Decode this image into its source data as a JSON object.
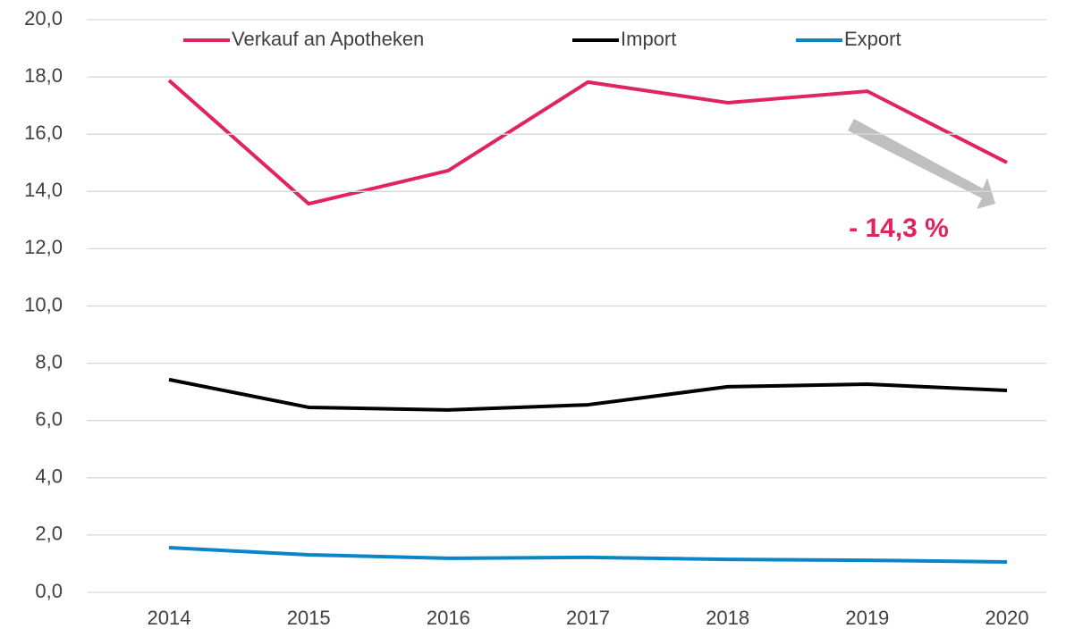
{
  "chart_data": {
    "type": "line",
    "categories": [
      "2014",
      "2015",
      "2016",
      "2017",
      "2018",
      "2019",
      "2020"
    ],
    "series": [
      {
        "name": "Verkauf an Apotheken",
        "color": "#e0245e",
        "values": [
          17.88,
          13.57,
          14.73,
          17.82,
          17.1,
          17.5,
          15.01
        ]
      },
      {
        "name": "Import",
        "color": "#000000",
        "values": [
          7.43,
          6.46,
          6.37,
          6.55,
          7.18,
          7.27,
          7.05
        ]
      },
      {
        "name": "Export",
        "color": "#0a86c8",
        "values": [
          1.56,
          1.31,
          1.19,
          1.22,
          1.15,
          1.12,
          1.06
        ]
      }
    ],
    "ylim": [
      0,
      20
    ],
    "yticks": [
      {
        "value": 0,
        "label": "0,0"
      },
      {
        "value": 2,
        "label": "2,0"
      },
      {
        "value": 4,
        "label": "4,0"
      },
      {
        "value": 6,
        "label": "6,0"
      },
      {
        "value": 8,
        "label": "8,0"
      },
      {
        "value": 10,
        "label": "10,0"
      },
      {
        "value": 12,
        "label": "12,0"
      },
      {
        "value": 14,
        "label": "14,0"
      },
      {
        "value": 16,
        "label": "16,0"
      },
      {
        "value": 18,
        "label": "18,0"
      },
      {
        "value": 20,
        "label": "20,0"
      }
    ],
    "grid": true,
    "legend": "top",
    "annotation": "- 14,3 %"
  }
}
